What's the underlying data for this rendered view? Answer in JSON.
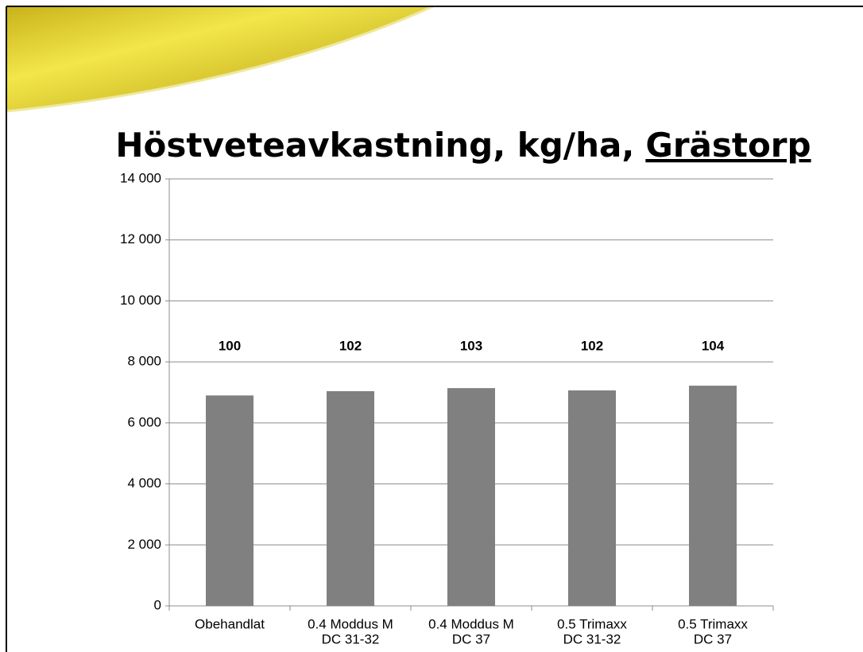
{
  "chart_data": {
    "type": "bar",
    "title": "Höstveteavkastning, kg/ha,",
    "title_place": "Grästorp",
    "categories": [
      [
        "Obehandlat"
      ],
      [
        "0.4 Moddus M",
        "DC 31-32"
      ],
      [
        "0.4 Moddus M",
        "DC 37"
      ],
      [
        "0.5 Trimaxx",
        "DC 31-32"
      ],
      [
        "0.5 Trimaxx",
        "DC 37"
      ]
    ],
    "values": [
      6900,
      7040,
      7140,
      7065,
      7220
    ],
    "relative_index": [
      100,
      102,
      103,
      102,
      104
    ],
    "color": "#808080",
    "ylim": [
      0,
      14000
    ],
    "yticks": [
      0,
      {
        "value": 2000,
        "label": "2 000"
      },
      {
        "value": 4000,
        "label": "4 000"
      },
      {
        "value": 6000,
        "label": "6 000"
      },
      {
        "value": 8000,
        "label": "8 000"
      },
      {
        "value": 10000,
        "label": "10 000"
      },
      {
        "value": 12000,
        "label": "12 000"
      },
      {
        "value": 14000,
        "label": "14 000"
      }
    ],
    "grid": true
  }
}
